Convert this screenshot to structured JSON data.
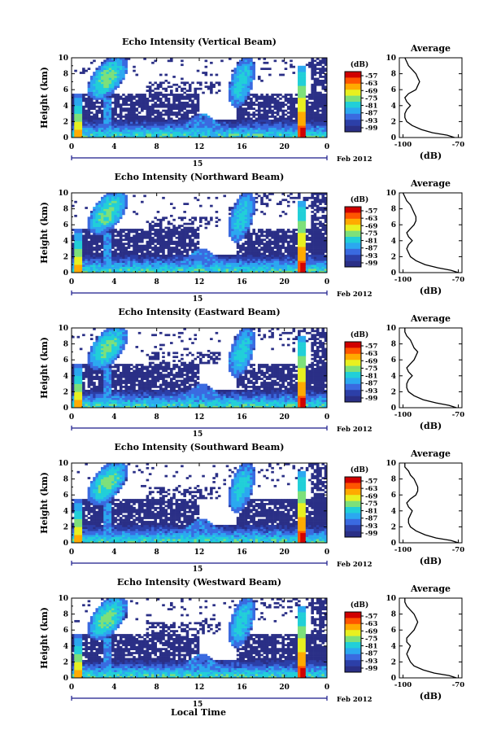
{
  "figure": {
    "date_label": "Feb 2012",
    "day_label": "15",
    "xlabel": "Local Time"
  },
  "colorbar": {
    "title": "(dB)",
    "ticks": [
      "-57",
      "-63",
      "-69",
      "-75",
      "-81",
      "-87",
      "-93",
      "-99"
    ],
    "colors": [
      "#d00000",
      "#ff5500",
      "#ffaa00",
      "#e8f020",
      "#7de07a",
      "#21cfd8",
      "#2ba8f0",
      "#3a6ae0",
      "#2c3fa8",
      "#2a2f86"
    ]
  },
  "chart_data": [
    {
      "type": "heatmap",
      "title": "Echo Intensity (Vertical Beam)",
      "ylabel": "Height (km)",
      "xlim": [
        0,
        24
      ],
      "ylim": [
        0,
        10
      ],
      "xticks": [
        "0",
        "4",
        "8",
        "12",
        "16",
        "20",
        "0"
      ],
      "xtick_values": [
        0,
        4,
        8,
        12,
        16,
        20,
        24
      ],
      "yticks": [
        "0",
        "2",
        "4",
        "6",
        "8",
        "10"
      ],
      "ytick_values": [
        0,
        2,
        4,
        6,
        8,
        10
      ],
      "colorbar_range_db": [
        -99,
        -57
      ],
      "average_profile": {
        "title": "Average",
        "xlabel": "(dB)",
        "xticks": [
          "-100",
          "-70"
        ],
        "xtick_values": [
          -100,
          -70
        ],
        "xlim": [
          -102,
          -68
        ],
        "ylim": [
          0,
          10
        ],
        "yticks": [
          "0",
          "2",
          "4",
          "6",
          "8",
          "10"
        ],
        "height_km": [
          0,
          0.3,
          0.6,
          1,
          1.5,
          2,
          2.5,
          3,
          3.5,
          4,
          4.5,
          5,
          5.5,
          6,
          6.5,
          7,
          7.5,
          8,
          8.5,
          9,
          9.5,
          10
        ],
        "db": [
          -72,
          -76,
          -84,
          -90,
          -95,
          -98,
          -99,
          -99,
          -98,
          -96,
          -98,
          -99,
          -97,
          -93,
          -92,
          -91,
          -92,
          -93,
          -95,
          -97,
          -98,
          -99
        ]
      }
    },
    {
      "type": "heatmap",
      "title": "Echo Intensity (Northward Beam)",
      "ylabel": "Height (km)",
      "xlim": [
        0,
        24
      ],
      "ylim": [
        0,
        10
      ],
      "xticks": [
        "0",
        "4",
        "8",
        "12",
        "16",
        "20",
        "0"
      ],
      "xtick_values": [
        0,
        4,
        8,
        12,
        16,
        20,
        24
      ],
      "yticks": [
        "0",
        "2",
        "4",
        "6",
        "8",
        "10"
      ],
      "ytick_values": [
        0,
        2,
        4,
        6,
        8,
        10
      ],
      "colorbar_range_db": [
        -99,
        -57
      ],
      "average_profile": {
        "title": "Average",
        "xlabel": "(dB)",
        "xticks": [
          "-100",
          "-70"
        ],
        "xtick_values": [
          -100,
          -70
        ],
        "xlim": [
          -102,
          -68
        ],
        "ylim": [
          0,
          10
        ],
        "yticks": [
          "0",
          "2",
          "4",
          "6",
          "8",
          "10"
        ],
        "height_km": [
          0,
          0.3,
          0.6,
          1,
          1.5,
          2,
          2.5,
          3,
          3.5,
          4,
          4.5,
          5,
          5.5,
          6,
          6.5,
          7,
          7.5,
          8,
          8.5,
          9,
          9.5,
          10
        ],
        "db": [
          -70,
          -74,
          -81,
          -88,
          -93,
          -96,
          -97,
          -98,
          -97,
          -95,
          -97,
          -98,
          -96,
          -94,
          -93,
          -93,
          -94,
          -95,
          -96,
          -98,
          -99,
          -100
        ]
      }
    },
    {
      "type": "heatmap",
      "title": "Echo Intensity (Eastward Beam)",
      "ylabel": "Height (km)",
      "xlim": [
        0,
        24
      ],
      "ylim": [
        0,
        10
      ],
      "xticks": [
        "0",
        "4",
        "8",
        "12",
        "16",
        "20",
        "0"
      ],
      "xtick_values": [
        0,
        4,
        8,
        12,
        16,
        20,
        24
      ],
      "yticks": [
        "0",
        "2",
        "4",
        "6",
        "8",
        "10"
      ],
      "ytick_values": [
        0,
        2,
        4,
        6,
        8,
        10
      ],
      "colorbar_range_db": [
        -99,
        -57
      ],
      "average_profile": {
        "title": "Average",
        "xlabel": "(dB)",
        "xticks": [
          "-100",
          "-70"
        ],
        "xtick_values": [
          -100,
          -70
        ],
        "xlim": [
          -102,
          -68
        ],
        "ylim": [
          0,
          10
        ],
        "yticks": [
          "0",
          "2",
          "4",
          "6",
          "8",
          "10"
        ],
        "height_km": [
          0,
          0.3,
          0.6,
          1,
          1.5,
          2,
          2.5,
          3,
          3.5,
          4,
          4.5,
          5,
          5.5,
          6,
          6.5,
          7,
          7.5,
          8,
          8.5,
          9,
          9.5,
          10
        ],
        "db": [
          -71,
          -75,
          -82,
          -89,
          -94,
          -97,
          -98,
          -98,
          -97,
          -95,
          -97,
          -98,
          -96,
          -94,
          -93,
          -92,
          -94,
          -95,
          -96,
          -98,
          -99,
          -99
        ]
      }
    },
    {
      "type": "heatmap",
      "title": "Echo Intensity (Southward Beam)",
      "ylabel": "Height (km)",
      "xlim": [
        0,
        24
      ],
      "ylim": [
        0,
        10
      ],
      "xticks": [
        "0",
        "4",
        "8",
        "12",
        "16",
        "20",
        "0"
      ],
      "xtick_values": [
        0,
        4,
        8,
        12,
        16,
        20,
        24
      ],
      "yticks": [
        "0",
        "2",
        "4",
        "6",
        "8",
        "10"
      ],
      "ytick_values": [
        0,
        2,
        4,
        6,
        8,
        10
      ],
      "colorbar_range_db": [
        -99,
        -57
      ],
      "average_profile": {
        "title": "Average",
        "xlabel": "(dB)",
        "xticks": [
          "-100",
          "-70"
        ],
        "xtick_values": [
          -100,
          -70
        ],
        "xlim": [
          -102,
          -68
        ],
        "ylim": [
          0,
          10
        ],
        "yticks": [
          "0",
          "2",
          "4",
          "6",
          "8",
          "10"
        ],
        "height_km": [
          0,
          0.3,
          0.6,
          1,
          1.5,
          2,
          2.5,
          3,
          3.5,
          4,
          4.5,
          5,
          5.5,
          6,
          6.5,
          7,
          7.5,
          8,
          8.5,
          9,
          9.5,
          10
        ],
        "db": [
          -70,
          -74,
          -82,
          -88,
          -93,
          -96,
          -97,
          -97,
          -96,
          -95,
          -97,
          -98,
          -96,
          -93,
          -92,
          -92,
          -93,
          -94,
          -96,
          -97,
          -99,
          -99
        ]
      }
    },
    {
      "type": "heatmap",
      "title": "Echo Intensity (Westward Beam)",
      "ylabel": "Height (km)",
      "xlim": [
        0,
        24
      ],
      "ylim": [
        0,
        10
      ],
      "xticks": [
        "0",
        "4",
        "8",
        "12",
        "16",
        "20",
        "0"
      ],
      "xtick_values": [
        0,
        4,
        8,
        12,
        16,
        20,
        24
      ],
      "yticks": [
        "0",
        "2",
        "4",
        "6",
        "8",
        "10"
      ],
      "ytick_values": [
        0,
        2,
        4,
        6,
        8,
        10
      ],
      "colorbar_range_db": [
        -99,
        -57
      ],
      "average_profile": {
        "title": "Average",
        "xlabel": "(dB)",
        "xticks": [
          "-100",
          "-70"
        ],
        "xtick_values": [
          -100,
          -70
        ],
        "xlim": [
          -102,
          -68
        ],
        "ylim": [
          0,
          10
        ],
        "yticks": [
          "0",
          "2",
          "4",
          "6",
          "8",
          "10"
        ],
        "height_km": [
          0,
          0.3,
          0.6,
          1,
          1.5,
          2,
          2.5,
          3,
          3.5,
          4,
          4.5,
          5,
          5.5,
          6,
          6.5,
          7,
          7.5,
          8,
          8.5,
          9,
          9.5,
          10
        ],
        "db": [
          -71,
          -75,
          -83,
          -89,
          -94,
          -96,
          -97,
          -98,
          -97,
          -96,
          -98,
          -98,
          -96,
          -94,
          -93,
          -92,
          -93,
          -94,
          -96,
          -98,
          -99,
          -99
        ]
      }
    }
  ]
}
